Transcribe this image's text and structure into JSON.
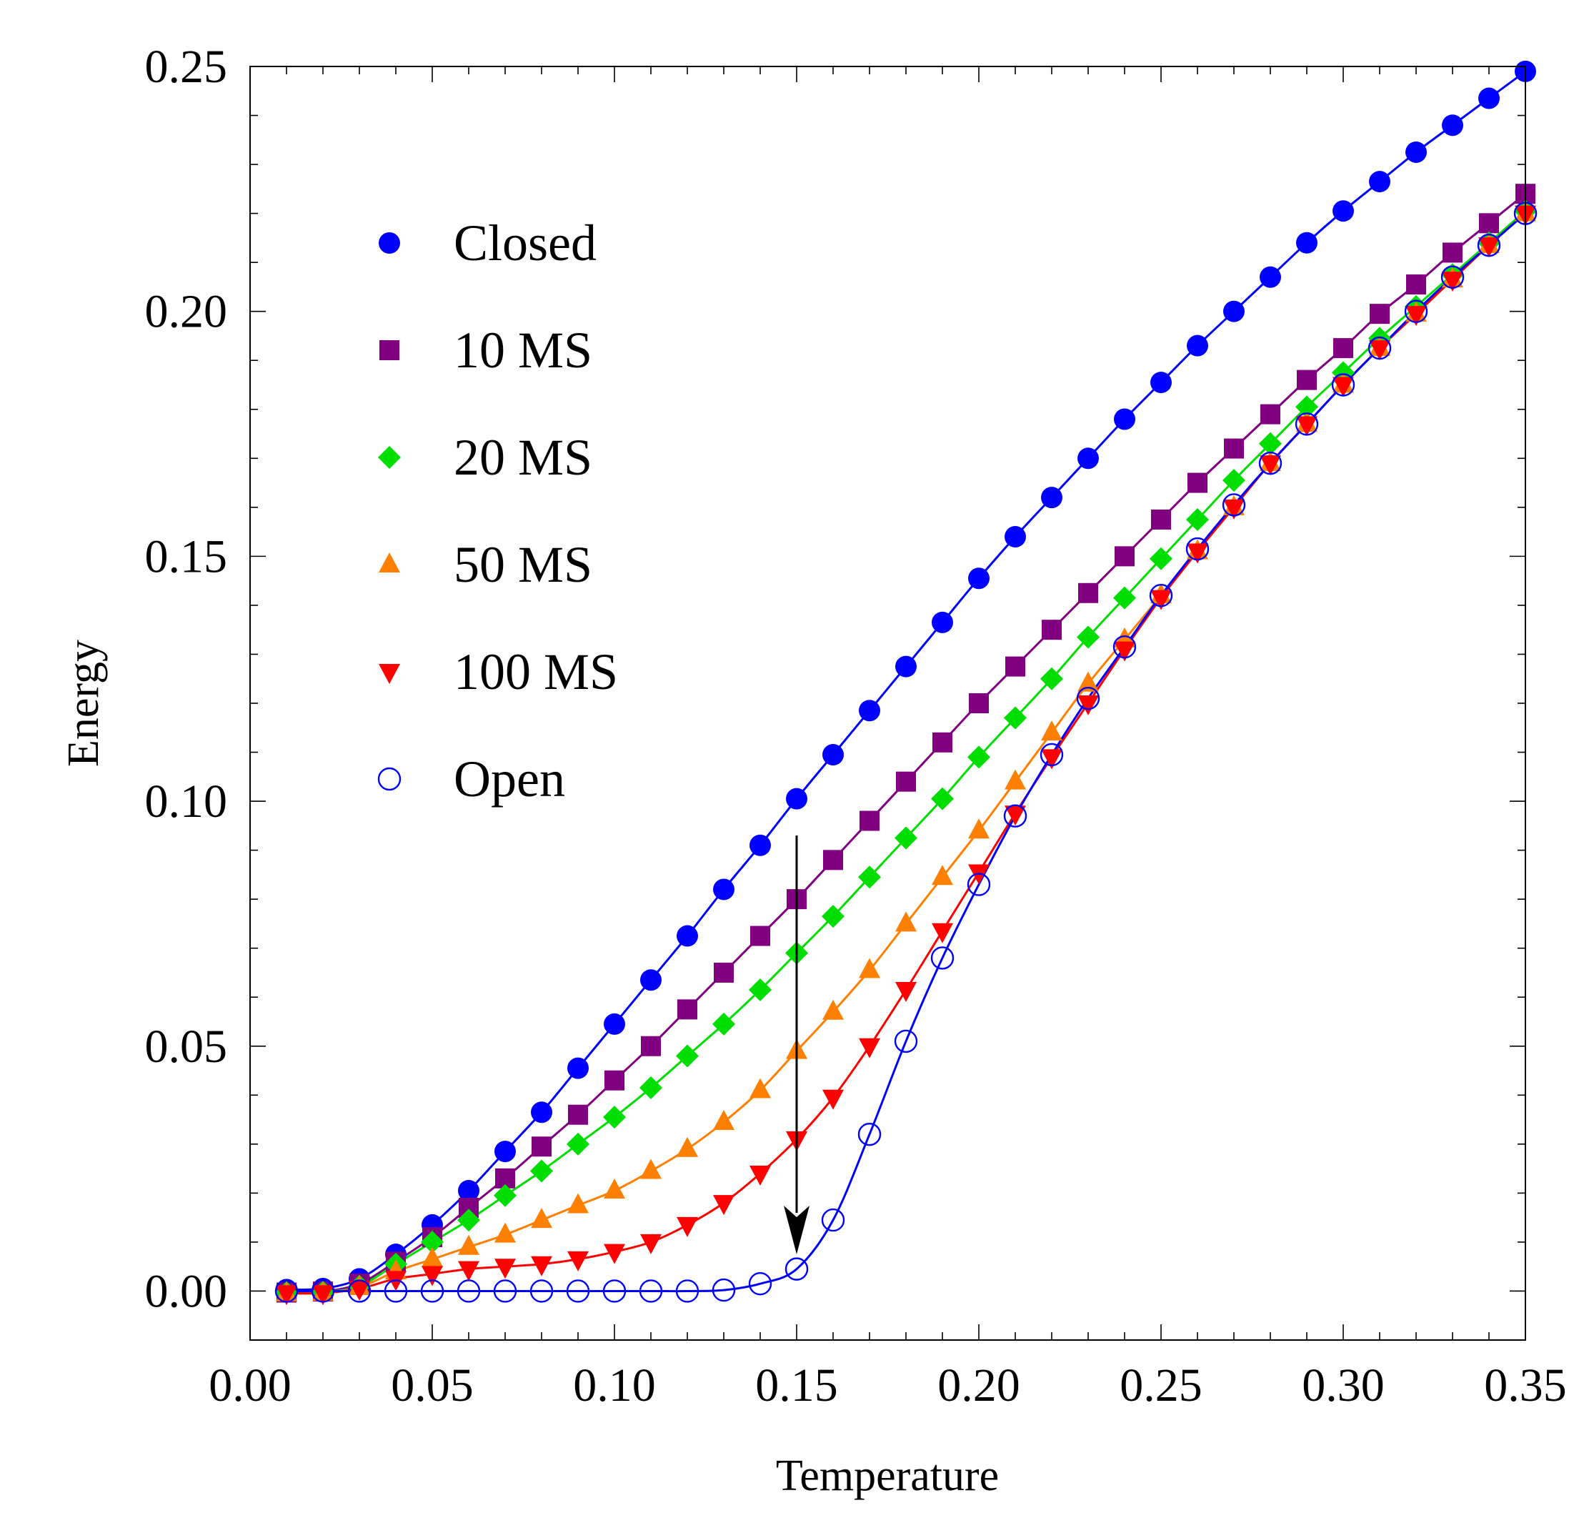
{
  "chart_data": {
    "type": "line",
    "title": "",
    "xlabel": "Temperature",
    "ylabel": "Energy",
    "xlim": [
      0.0,
      0.35
    ],
    "ylim": [
      -0.01,
      0.25
    ],
    "xticks": [
      "0.00",
      "0.05",
      "0.10",
      "0.15",
      "0.20",
      "0.25",
      "0.30",
      "0.35"
    ],
    "yticks": [
      "0.00",
      "0.05",
      "0.10",
      "0.15",
      "0.20",
      "0.25"
    ],
    "legend_position": "upper-left",
    "annotation": {
      "type": "arrow",
      "description": "downward arrow at Temperature 0.15",
      "x": 0.15,
      "y_from": 0.093,
      "y_to": 0.0075
    },
    "x": [
      0.01,
      0.02,
      0.03,
      0.04,
      0.05,
      0.06,
      0.07,
      0.08,
      0.09,
      0.1,
      0.11,
      0.12,
      0.13,
      0.14,
      0.15,
      0.16,
      0.17,
      0.18,
      0.19,
      0.2,
      0.21,
      0.22,
      0.23,
      0.24,
      0.25,
      0.26,
      0.27,
      0.28,
      0.29,
      0.3,
      0.31,
      0.32,
      0.33,
      0.34,
      0.35
    ],
    "series": [
      {
        "name": "Closed",
        "color": "#0000ff",
        "marker": "circle",
        "values": [
          0.0003,
          0.0005,
          0.0025,
          0.0075,
          0.0135,
          0.0205,
          0.0285,
          0.0365,
          0.0455,
          0.0545,
          0.0635,
          0.0725,
          0.082,
          0.091,
          0.1005,
          0.1095,
          0.1185,
          0.1275,
          0.1365,
          0.1455,
          0.154,
          0.162,
          0.17,
          0.178,
          0.1855,
          0.193,
          0.2,
          0.207,
          0.214,
          0.2205,
          0.2265,
          0.2325,
          0.238,
          0.2435,
          0.249
        ]
      },
      {
        "name": "10 MS",
        "color": "#800080",
        "marker": "square",
        "values": [
          -0.0003,
          -0.0001,
          0.0015,
          0.006,
          0.011,
          0.017,
          0.023,
          0.0295,
          0.036,
          0.043,
          0.05,
          0.0575,
          0.065,
          0.0725,
          0.08,
          0.088,
          0.096,
          0.104,
          0.112,
          0.12,
          0.1275,
          0.135,
          0.1425,
          0.15,
          0.1575,
          0.165,
          0.172,
          0.179,
          0.186,
          0.1925,
          0.1995,
          0.2055,
          0.212,
          0.218,
          0.224
        ]
      },
      {
        "name": "20 MS",
        "color": "#00dd00",
        "marker": "diamond",
        "values": [
          -0.0003,
          -0.0002,
          0.001,
          0.0055,
          0.01,
          0.0145,
          0.0195,
          0.0245,
          0.03,
          0.0355,
          0.0415,
          0.048,
          0.0545,
          0.0615,
          0.069,
          0.0765,
          0.0845,
          0.0925,
          0.1005,
          0.109,
          0.117,
          0.125,
          0.1335,
          0.1415,
          0.1495,
          0.1575,
          0.1655,
          0.173,
          0.1805,
          0.1875,
          0.1945,
          0.201,
          0.2075,
          0.214,
          0.2205
        ]
      },
      {
        "name": "50 MS",
        "color": "#ff7f00",
        "marker": "triangle-up",
        "values": [
          -0.0005,
          -0.0004,
          0.0008,
          0.004,
          0.0065,
          0.009,
          0.0115,
          0.0145,
          0.0175,
          0.0205,
          0.0245,
          0.029,
          0.0345,
          0.041,
          0.049,
          0.057,
          0.0655,
          0.075,
          0.0845,
          0.094,
          0.104,
          0.114,
          0.124,
          0.133,
          0.142,
          0.151,
          0.16,
          0.169,
          0.177,
          0.185,
          0.1925,
          0.1995,
          0.2065,
          0.2135,
          0.22
        ]
      },
      {
        "name": "100 MS",
        "color": "#ff0000",
        "marker": "triangle-down",
        "values": [
          -0.0004,
          -0.0004,
          0.0005,
          0.0025,
          0.0035,
          0.0045,
          0.005,
          0.0055,
          0.0065,
          0.008,
          0.01,
          0.0135,
          0.018,
          0.024,
          0.031,
          0.0395,
          0.05,
          0.0615,
          0.0735,
          0.0855,
          0.0975,
          0.109,
          0.12,
          0.131,
          0.1415,
          0.151,
          0.16,
          0.169,
          0.177,
          0.185,
          0.1925,
          0.1995,
          0.2065,
          0.2135,
          0.22
        ]
      },
      {
        "name": "Open",
        "color": "#0000ff",
        "marker": "circle-open",
        "values": [
          0.0,
          0.0,
          0.0,
          0.0,
          0.0,
          0.0,
          0.0,
          0.0,
          0.0,
          0.0,
          0.0,
          0.0,
          0.0002,
          0.0015,
          0.0045,
          0.0145,
          0.032,
          0.051,
          0.068,
          0.083,
          0.097,
          0.1095,
          0.121,
          0.1315,
          0.142,
          0.1515,
          0.1605,
          0.169,
          0.177,
          0.185,
          0.1925,
          0.2,
          0.207,
          0.2135,
          0.22
        ]
      }
    ]
  }
}
